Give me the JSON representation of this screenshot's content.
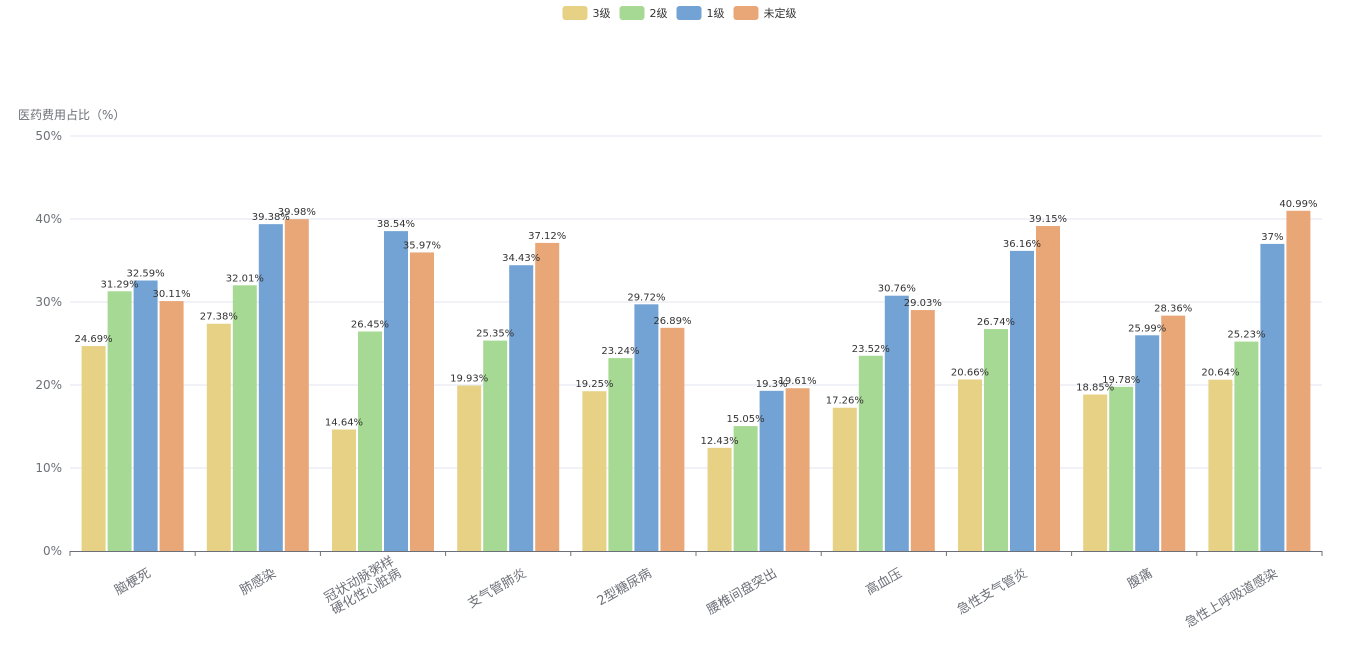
{
  "chart_data": {
    "type": "bar",
    "ylabel": "医药费用占比（%）",
    "ylim": [
      0,
      50
    ],
    "yticks": [
      "0%",
      "10%",
      "20%",
      "30%",
      "40%",
      "50%"
    ],
    "legend_position": "top-center",
    "grid": true,
    "categories": [
      "脑梗死",
      "肺感染",
      "冠状动脉粥样\n硬化性心脏病",
      "支气管肺炎",
      "2型糖尿病",
      "腰椎间盘突出",
      "高血压",
      "急性支气管炎",
      "腹痛",
      "急性上呼吸道感染"
    ],
    "series": [
      {
        "name": "3级",
        "color": "#e6d184",
        "values": [
          24.69,
          27.38,
          14.64,
          19.93,
          19.25,
          12.43,
          17.26,
          20.66,
          18.85,
          20.64
        ],
        "labels": [
          "24.69%",
          "27.38%",
          "14.64%",
          "19.93%",
          "19.25%",
          "12.43%",
          "17.26%",
          "20.66%",
          "18.85%",
          "20.64%"
        ]
      },
      {
        "name": "2级",
        "color": "#a6d993",
        "values": [
          31.29,
          32.01,
          26.45,
          25.35,
          23.24,
          15.05,
          23.52,
          26.74,
          19.78,
          25.23
        ],
        "labels": [
          "31.29%",
          "32.01%",
          "26.45%",
          "25.35%",
          "23.24%",
          "15.05%",
          "23.52%",
          "26.74%",
          "19.78%",
          "25.23%"
        ]
      },
      {
        "name": "1级",
        "color": "#73a3d4",
        "values": [
          32.59,
          39.38,
          38.54,
          34.43,
          29.72,
          19.3,
          30.76,
          36.16,
          25.99,
          37
        ],
        "labels": [
          "32.59%",
          "39.38%",
          "38.54%",
          "34.43%",
          "29.72%",
          "19.3%",
          "30.76%",
          "36.16%",
          "25.99%",
          "37%"
        ]
      },
      {
        "name": "未定级",
        "color": "#e9a677",
        "values": [
          30.11,
          39.98,
          35.97,
          37.12,
          26.89,
          19.61,
          29.03,
          39.15,
          28.36,
          40.99
        ],
        "labels": [
          "30.11%",
          "39.98%",
          "35.97%",
          "37.12%",
          "26.89%",
          "19.61%",
          "29.03%",
          "39.15%",
          "28.36%",
          "40.99%"
        ]
      }
    ]
  }
}
